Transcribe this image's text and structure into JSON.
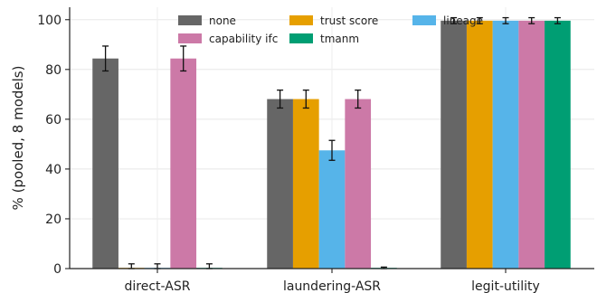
{
  "chart_data": {
    "type": "bar",
    "title": "",
    "xlabel": "",
    "ylabel": "%  (pooled, 8 models)",
    "ylim": [
      0,
      105
    ],
    "yticks": [
      0,
      20,
      40,
      60,
      80,
      100
    ],
    "grid": true,
    "legend_position": "top-right",
    "legend_columns": 3,
    "categories": [
      "direct-ASR",
      "laundering-ASR",
      "legit-utility"
    ],
    "series": [
      {
        "name": "none",
        "color": "#666666",
        "values": [
          84.4,
          68.1,
          99.6
        ],
        "errors": [
          5.0,
          3.6,
          1.2
        ]
      },
      {
        "name": "trust score",
        "color": "#E69F00",
        "values": [
          0.3,
          68.1,
          99.6
        ],
        "errors": [
          1.6,
          3.6,
          1.2
        ]
      },
      {
        "name": "lineage",
        "color": "#56B4E9",
        "values": [
          0.3,
          47.5,
          99.6
        ],
        "errors": [
          1.6,
          4.0,
          1.2
        ]
      },
      {
        "name": "capability ifc",
        "color": "#CC79A7",
        "values": [
          84.4,
          68.1,
          99.6
        ],
        "errors": [
          5.0,
          3.6,
          1.2
        ]
      },
      {
        "name": "tmanm",
        "color": "#009E73",
        "values": [
          0.3,
          0.3,
          99.6
        ],
        "errors": [
          1.6,
          0.3,
          1.2
        ]
      }
    ]
  }
}
